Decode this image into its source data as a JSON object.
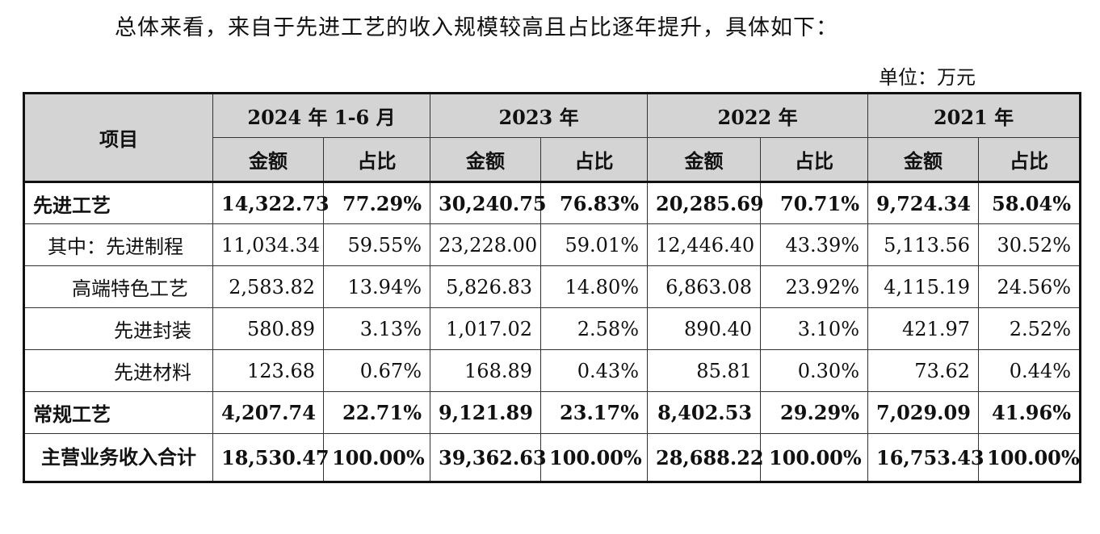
{
  "intro_text": "总体来看，来自于先进工艺的收入规模较高且占比逐年提升，具体如下：",
  "unit_text": "单位：万元",
  "table": {
    "header": {
      "item_label": "项目",
      "years": [
        "2024 年 1-6 月",
        "2023 年",
        "2022 年",
        "2021 年"
      ],
      "sub_amount": "金额",
      "sub_ratio": "占比"
    },
    "rows": [
      {
        "label": "先进工艺",
        "values": [
          "14,322.73",
          "77.29%",
          "30,240.75",
          "76.83%",
          "20,285.69",
          "70.71%",
          "9,724.34",
          "58.04%"
        ]
      },
      {
        "label": "其中：先进制程",
        "values": [
          "11,034.34",
          "59.55%",
          "23,228.00",
          "59.01%",
          "12,446.40",
          "43.39%",
          "5,113.56",
          "30.52%"
        ]
      },
      {
        "label": "高端特色工艺",
        "values": [
          "2,583.82",
          "13.94%",
          "5,826.83",
          "14.80%",
          "6,863.08",
          "23.92%",
          "4,115.19",
          "24.56%"
        ]
      },
      {
        "label": "先进封装",
        "values": [
          "580.89",
          "3.13%",
          "1,017.02",
          "2.58%",
          "890.40",
          "3.10%",
          "421.97",
          "2.52%"
        ]
      },
      {
        "label": "先进材料",
        "values": [
          "123.68",
          "0.67%",
          "168.89",
          "0.43%",
          "85.81",
          "0.30%",
          "73.62",
          "0.44%"
        ]
      },
      {
        "label": "常规工艺",
        "values": [
          "4,207.74",
          "22.71%",
          "9,121.89",
          "23.17%",
          "8,402.53",
          "29.29%",
          "7,029.09",
          "41.96%"
        ]
      },
      {
        "label": "主营业务收入合计",
        "values": [
          "18,530.47",
          "100.00%",
          "39,362.63",
          "100.00%",
          "28,688.22",
          "100.00%",
          "16,753.43",
          "100.00%"
        ]
      }
    ]
  }
}
